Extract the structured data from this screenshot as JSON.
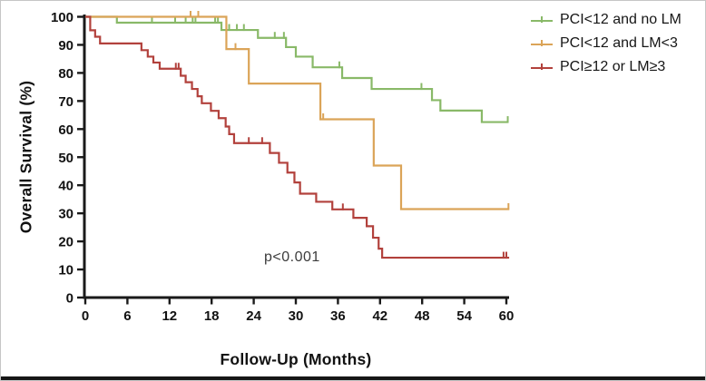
{
  "figure": {
    "y_axis_title": "Overall Survival (%)",
    "x_axis_title": "Follow-Up (Months)",
    "p_value_text": "p<0.001"
  },
  "chart_data": {
    "type": "line",
    "subtype": "kaplan-meier-step-curves",
    "title": "",
    "xlabel": "Follow-Up (Months)",
    "ylabel": "Overall Survival (%)",
    "xlim": [
      0,
      60
    ],
    "ylim": [
      0,
      100
    ],
    "x_ticks": [
      0,
      6,
      12,
      18,
      24,
      30,
      36,
      42,
      48,
      54,
      60
    ],
    "y_ticks": [
      0,
      10,
      20,
      30,
      40,
      50,
      60,
      70,
      80,
      90,
      100
    ],
    "grid": false,
    "legend_position": "top-right",
    "annotation": {
      "text": "p<0.001",
      "x_months": 29,
      "y_percent": 13
    },
    "axis_color": "#1a1a1a",
    "series": [
      {
        "name": "PCI<12 and no LM",
        "color": "#89b968",
        "start": [
          0,
          100
        ],
        "steps": [
          [
            4.5,
            97.9
          ],
          [
            19.4,
            95.3
          ],
          [
            24.6,
            92.5
          ],
          [
            28.6,
            89.2
          ],
          [
            30.0,
            85.8
          ],
          [
            32.4,
            82.0
          ],
          [
            36.6,
            78.2
          ],
          [
            40.8,
            74.3
          ],
          [
            49.4,
            70.3
          ],
          [
            50.6,
            66.6
          ],
          [
            56.5,
            62.5
          ]
        ],
        "end_time": 60.2,
        "censors": [
          [
            9.5,
            97.9
          ],
          [
            12.8,
            97.9
          ],
          [
            14.3,
            97.9
          ],
          [
            15.3,
            97.9
          ],
          [
            15.7,
            97.9
          ],
          [
            18.5,
            97.9
          ],
          [
            18.9,
            97.9
          ],
          [
            20.5,
            95.3
          ],
          [
            21.6,
            95.3
          ],
          [
            22.6,
            95.3
          ],
          [
            27.0,
            92.5
          ],
          [
            28.3,
            92.5
          ],
          [
            36.2,
            82.0
          ],
          [
            47.9,
            74.3
          ],
          [
            60.2,
            62.5
          ]
        ]
      },
      {
        "name": "PCI<12 and LM<3",
        "color": "#dba458",
        "start": [
          0,
          100
        ],
        "steps": [
          [
            20.1,
            88.5
          ],
          [
            23.3,
            76.2
          ],
          [
            33.5,
            63.5
          ],
          [
            41.1,
            47.0
          ],
          [
            45.0,
            31.5
          ]
        ],
        "end_time": 60.4,
        "censors": [
          [
            15.0,
            100
          ],
          [
            16.1,
            100
          ],
          [
            21.4,
            88.5
          ],
          [
            33.9,
            63.5
          ],
          [
            60.3,
            31.5
          ]
        ]
      },
      {
        "name": "PCI≥12 or LM≥3",
        "color": "#b2413c",
        "start": [
          0,
          100
        ],
        "steps": [
          [
            0.7,
            95.2
          ],
          [
            1.4,
            92.9
          ],
          [
            2.1,
            90.5
          ],
          [
            8.0,
            88.1
          ],
          [
            8.9,
            85.8
          ],
          [
            9.7,
            83.7
          ],
          [
            10.6,
            81.5
          ],
          [
            13.6,
            79.0
          ],
          [
            14.3,
            76.7
          ],
          [
            15.2,
            74.3
          ],
          [
            16.0,
            71.7
          ],
          [
            16.6,
            69.2
          ],
          [
            17.9,
            66.5
          ],
          [
            19.0,
            63.9
          ],
          [
            20.0,
            60.9
          ],
          [
            20.5,
            58.2
          ],
          [
            21.2,
            55.0
          ],
          [
            26.3,
            51.5
          ],
          [
            27.6,
            48.0
          ],
          [
            28.8,
            44.5
          ],
          [
            29.8,
            41.0
          ],
          [
            30.6,
            37.0
          ],
          [
            32.9,
            34.1
          ],
          [
            35.2,
            31.4
          ],
          [
            38.2,
            28.4
          ],
          [
            40.1,
            25.4
          ],
          [
            41.0,
            21.3
          ],
          [
            41.8,
            17.4
          ],
          [
            42.3,
            14.2
          ]
        ],
        "end_time": 60.4,
        "censors": [
          [
            12.9,
            81.5
          ],
          [
            13.3,
            81.5
          ],
          [
            23.3,
            55.0
          ],
          [
            25.2,
            55.0
          ],
          [
            36.7,
            31.4
          ],
          [
            59.6,
            14.2
          ],
          [
            60.0,
            14.2
          ]
        ]
      }
    ]
  }
}
